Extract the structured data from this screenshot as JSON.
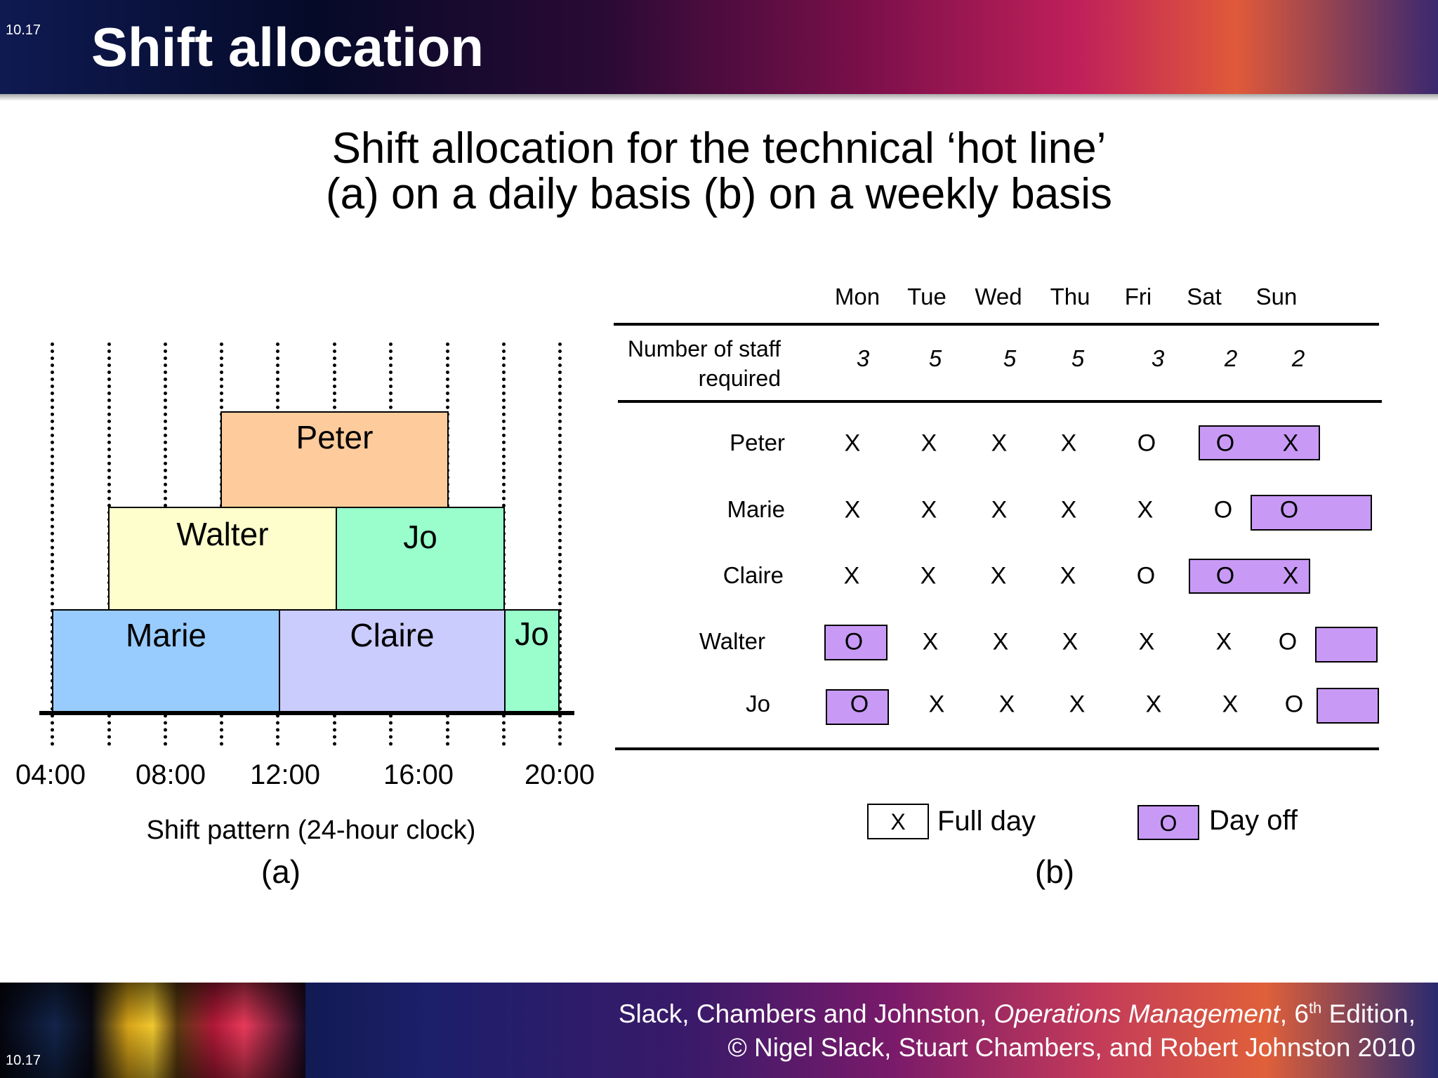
{
  "slide_number": "10.17",
  "header": {
    "title": "Shift allocation"
  },
  "subtitle": {
    "line1": "Shift allocation for the technical ‘hot line’",
    "line2": "(a) on a daily basis  (b) on a weekly basis"
  },
  "panel_a": {
    "x_tick_labels": [
      "04:00",
      "08:00",
      "12:00",
      "16:00",
      "20:00"
    ],
    "x_label": "Shift pattern (24-hour clock)",
    "panel_label": "(a)",
    "colors": {
      "Peter": "#fecb9c",
      "Walter": "#fefecc",
      "Jo": "#99fecc",
      "Marie": "#99ccfe",
      "Claire": "#cbccfe"
    },
    "shifts": [
      {
        "name": "Marie",
        "level": 1
      },
      {
        "name": "Claire",
        "level": 1
      },
      {
        "name": "Jo",
        "level": 1
      },
      {
        "name": "Walter",
        "level": 2
      },
      {
        "name": "Jo",
        "level": 2
      },
      {
        "name": "Peter",
        "level": 3
      }
    ]
  },
  "panel_b": {
    "days": [
      "Mon",
      "Tue",
      "Wed",
      "Thu",
      "Fri",
      "Sat",
      "Sun"
    ],
    "required_label": "Number of staff required",
    "required": [
      "3",
      "5",
      "5",
      "5",
      "3",
      "2",
      "2"
    ],
    "staff": [
      {
        "name": "Peter",
        "marks": [
          "X",
          "X",
          "X",
          "X",
          "O",
          "O",
          "X"
        ]
      },
      {
        "name": "Marie",
        "marks": [
          "X",
          "X",
          "X",
          "X",
          "X",
          "O",
          "O"
        ]
      },
      {
        "name": "Claire",
        "marks": [
          "X",
          "X",
          "X",
          "X",
          "O",
          "O",
          "X"
        ]
      },
      {
        "name": "Walter",
        "marks": [
          "O",
          "X",
          "X",
          "X",
          "X",
          "X",
          "O"
        ]
      },
      {
        "name": "Jo",
        "marks": [
          "O",
          "X",
          "X",
          "X",
          "X",
          "X",
          "O"
        ]
      }
    ],
    "legend": {
      "full_day_glyph": "X",
      "full_day_label": "Full day",
      "day_off_glyph": "O",
      "day_off_label": "Day off"
    },
    "panel_label": "(b)",
    "day_off_color": "#c89af5"
  },
  "footer": {
    "authors": "Slack, Chambers and Johnston, ",
    "book_title": "Operations Management",
    "edition_sep": ", 6",
    "edition_sup": "th",
    "edition_tail": " Edition,",
    "copyright": "© Nigel Slack, Stuart Chambers, and Robert Johnston 2010"
  }
}
